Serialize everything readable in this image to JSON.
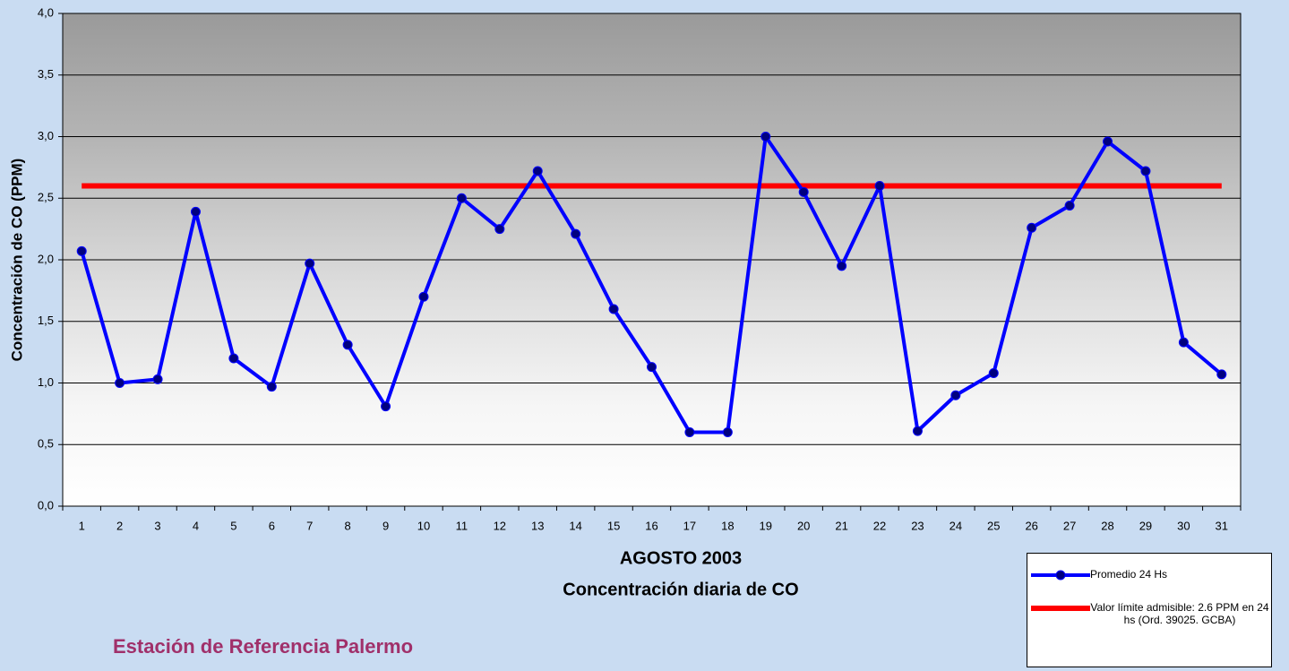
{
  "chart_data": {
    "type": "line",
    "xlabel": [
      "AGOSTO 2003",
      "Concentración diaria de CO"
    ],
    "ylabel": "Concentración de CO (PPM)",
    "annotation": "Estación de Referencia Palermo",
    "categories": [
      "1",
      "2",
      "3",
      "4",
      "5",
      "6",
      "7",
      "8",
      "9",
      "10",
      "11",
      "12",
      "13",
      "14",
      "15",
      "16",
      "17",
      "18",
      "19",
      "20",
      "21",
      "22",
      "23",
      "24",
      "25",
      "26",
      "27",
      "28",
      "29",
      "30",
      "31"
    ],
    "series": [
      {
        "name": "Promedio 24 Hs",
        "color": "#0000ff",
        "markers": true,
        "values": [
          2.07,
          1.0,
          1.03,
          2.39,
          1.2,
          0.97,
          1.97,
          1.31,
          0.81,
          1.7,
          2.5,
          2.25,
          2.72,
          2.21,
          1.6,
          1.13,
          0.6,
          0.6,
          3.0,
          2.55,
          1.95,
          2.6,
          0.61,
          0.9,
          1.08,
          2.26,
          2.44,
          2.96,
          2.72,
          1.33,
          1.07
        ]
      },
      {
        "name": "Valor límite admisible: 2.6 PPM en 24 hs (Ord. 39025. GCBA)",
        "color": "#ff0000",
        "markers": false,
        "values": [
          2.6,
          2.6,
          2.6,
          2.6,
          2.6,
          2.6,
          2.6,
          2.6,
          2.6,
          2.6,
          2.6,
          2.6,
          2.6,
          2.6,
          2.6,
          2.6,
          2.6,
          2.6,
          2.6,
          2.6,
          2.6,
          2.6,
          2.6,
          2.6,
          2.6,
          2.6,
          2.6,
          2.6,
          2.6,
          2.6,
          2.6
        ]
      }
    ],
    "ylim": [
      0,
      4
    ],
    "yticks": [
      {
        "value": 0,
        "label": "0,0"
      },
      {
        "value": 0.5,
        "label": "0,5"
      },
      {
        "value": 1,
        "label": "1,0"
      },
      {
        "value": 1.5,
        "label": "1,5"
      },
      {
        "value": 2,
        "label": "2,0"
      },
      {
        "value": 2.5,
        "label": "2,5"
      },
      {
        "value": 3,
        "label": "3,0"
      },
      {
        "value": 3.5,
        "label": "3,5"
      },
      {
        "value": 4,
        "label": "4,0"
      }
    ],
    "grid": true
  }
}
